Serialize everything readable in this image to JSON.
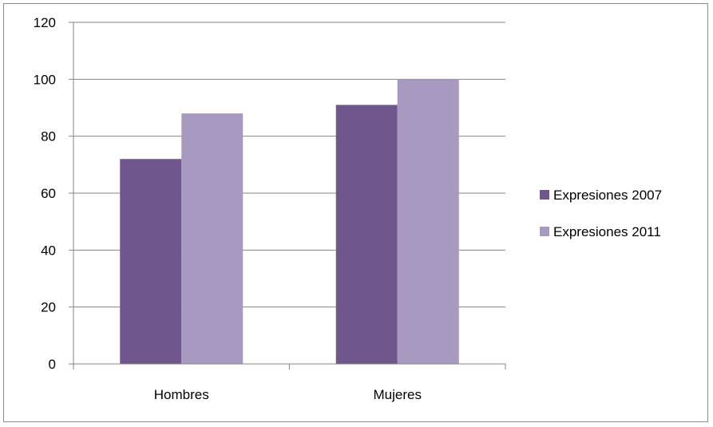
{
  "chart_data": {
    "type": "bar",
    "categories": [
      "Hombres",
      "Mujeres"
    ],
    "series": [
      {
        "name": "Expresiones 2007",
        "values": [
          72,
          91
        ],
        "color": "#6f568b"
      },
      {
        "name": "Expresiones 2011",
        "values": [
          88,
          100
        ],
        "color": "#a799bf"
      }
    ],
    "title": "",
    "xlabel": "",
    "ylabel": "",
    "ylim": [
      0,
      120
    ],
    "yticks": [
      0,
      20,
      40,
      60,
      80,
      100,
      120
    ],
    "ytick_labels": [
      "0",
      "20",
      "40",
      "60",
      "80",
      "100",
      "120"
    ],
    "grid": true,
    "legend_position": "right"
  }
}
